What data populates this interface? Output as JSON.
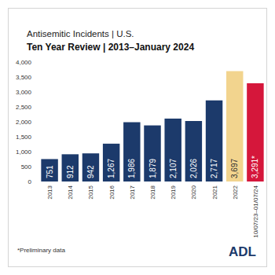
{
  "chart_data": {
    "type": "bar",
    "title": "Antisemitic Incidents | U.S.",
    "subtitle": "Ten Year Review | 2013–January 2024",
    "categories": [
      "2013",
      "2014",
      "2015",
      "2016",
      "2017",
      "2018",
      "2019",
      "2020",
      "2021",
      "2022",
      "10/07/23–01/07/24"
    ],
    "values": [
      751,
      912,
      942,
      1267,
      1986,
      1879,
      2107,
      2026,
      2717,
      3697,
      3291
    ],
    "value_labels": [
      "751",
      "912",
      "942",
      "1,267",
      "1,986",
      "1,879",
      "2,107",
      "2,026",
      "2,717",
      "3,697",
      "3,291*"
    ],
    "colors": [
      "#1c3a6b",
      "#1c3a6b",
      "#1c3a6b",
      "#1c3a6b",
      "#1c3a6b",
      "#1c3a6b",
      "#1c3a6b",
      "#1c3a6b",
      "#1c3a6b",
      "#f2d48e",
      "#d5173b"
    ],
    "data_labels": true,
    "grid": false,
    "ylim": [
      0,
      4000
    ],
    "yticks": [
      0,
      500,
      {
        "value": 1000,
        "label": "1,000"
      },
      {
        "value": 1500,
        "label": "1,500"
      },
      {
        "value": 2000,
        "label": "2,000"
      },
      {
        "value": 2500,
        "label": "2,500"
      },
      {
        "value": 3000,
        "label": "3,000"
      },
      {
        "value": 3500,
        "label": "3,500"
      },
      {
        "value": 4000,
        "label": "4,000"
      }
    ],
    "note": "*Preliminary data",
    "logo": "ADL"
  }
}
